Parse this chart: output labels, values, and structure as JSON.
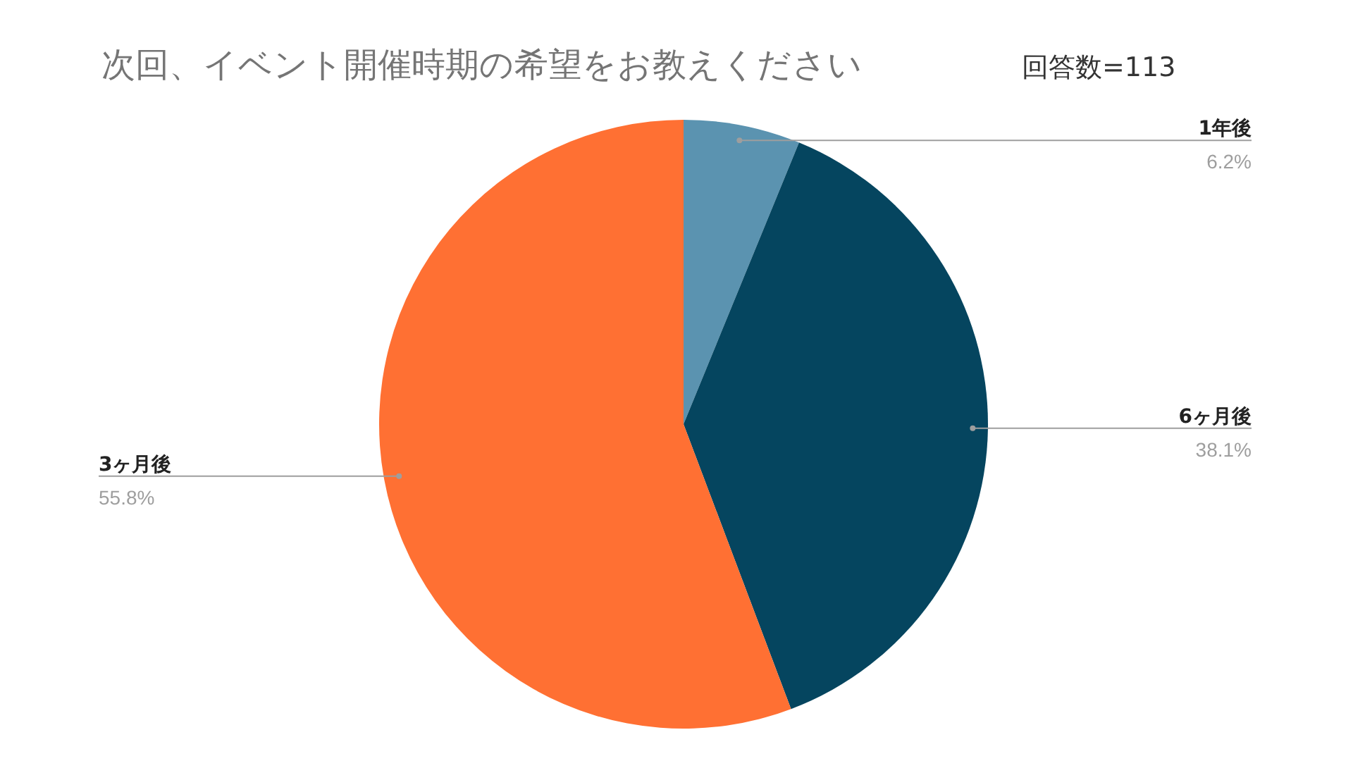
{
  "chart_data": {
    "type": "pie",
    "title": "次回、イベント開催時期の希望をお教えください",
    "annotations": [
      "回答数=113"
    ],
    "categories": [
      "1年後",
      "6ヶ月後",
      "3ヶ月後"
    ],
    "values": [
      6.2,
      38.1,
      55.8
    ],
    "colors": [
      "#5b93b0",
      "#05455f",
      "#ff7033"
    ],
    "value_labels": [
      "6.2%",
      "38.1%",
      "55.8%"
    ]
  }
}
